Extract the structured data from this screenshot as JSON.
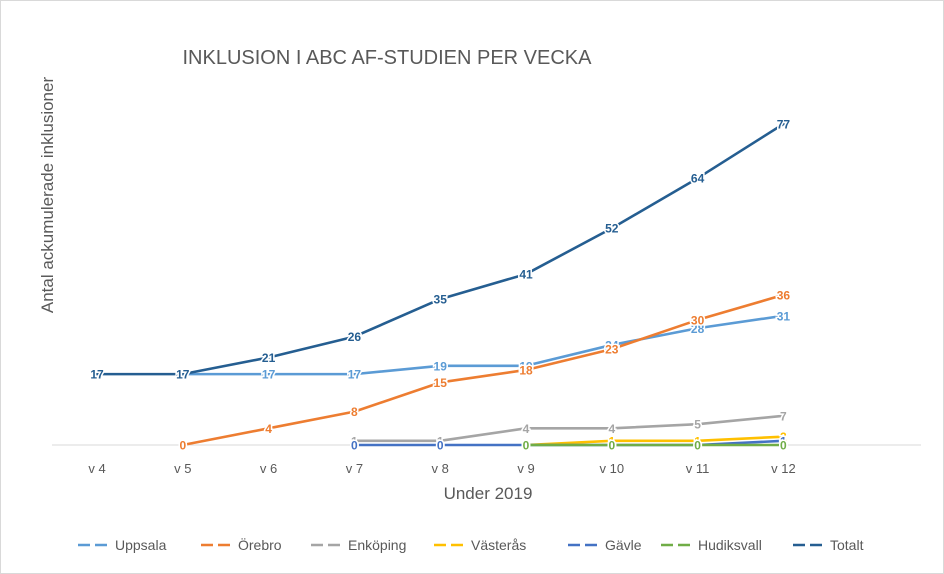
{
  "chart_data": {
    "type": "line",
    "title": "INKLUSION I ABC AF-STUDIEN PER VECKA",
    "xlabel": "Under 2019",
    "ylabel": "Antal ackumulerade inklusioner",
    "categories": [
      "v 4",
      "v 5",
      "v 6",
      "v 7",
      "v 8",
      "v 9",
      "v 10",
      "v 11",
      "v 12"
    ],
    "ylim": [
      0,
      80
    ],
    "grid": false,
    "legend": "bottom",
    "series": [
      {
        "name": "Uppsala",
        "color": "#5B9BD5",
        "values": [
          null,
          17,
          17,
          17,
          19,
          19,
          24,
          28,
          31
        ]
      },
      {
        "name": "Örebro",
        "color": "#ED7D31",
        "values": [
          null,
          0,
          4,
          8,
          15,
          18,
          23,
          30,
          36
        ]
      },
      {
        "name": "Enköping",
        "color": "#A5A5A5",
        "values": [
          null,
          null,
          null,
          1,
          1,
          4,
          4,
          5,
          7
        ]
      },
      {
        "name": "Västerås",
        "color": "#FFC000",
        "values": [
          null,
          null,
          null,
          null,
          null,
          0,
          1,
          1,
          2
        ]
      },
      {
        "name": "Gävle",
        "color": "#4472C4",
        "values": [
          null,
          null,
          null,
          0,
          0,
          0,
          0,
          0,
          1
        ]
      },
      {
        "name": "Hudiksvall",
        "color": "#70AD47",
        "values": [
          null,
          null,
          null,
          null,
          null,
          0,
          0,
          0,
          0
        ]
      },
      {
        "name": "Totalt",
        "color": "#255E91",
        "values": [
          17,
          17,
          21,
          26,
          35,
          41,
          52,
          64,
          77
        ]
      }
    ]
  }
}
